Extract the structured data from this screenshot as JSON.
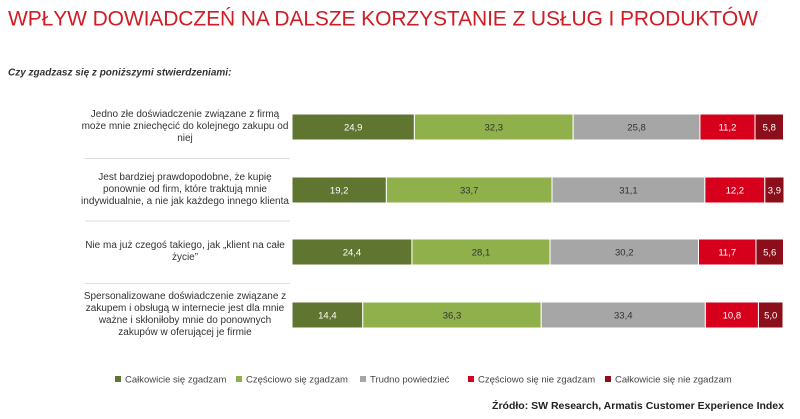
{
  "chart_data": {
    "type": "stacked-bar-horizontal",
    "title": "WPŁYW DOWIADCZEŃ NA DALSZE KORZYSTANIE Z USŁUG I PRODUKTÓW",
    "subtitle": "Czy zgadzasz się z poniższymi stwierdzeniami:",
    "source": "Źródło: SW Research, Armatis Customer Experience Index",
    "categories": [
      "Jedno złe doświadczenie związane z firmą może mnie zniechęcić do kolejnego zakupu od niej",
      "Jest bardziej prawdopodobne, że kupię ponownie od firm, które traktują mnie indywidualnie, a nie jak każdego innego klienta",
      "Nie ma już czegoś takiego, jak „klient na całe życie”",
      "Spersonalizowane doświadczenie związane z zakupem i obsługą w internecie jest dla mnie ważne i skłoniłoby mnie do ponownych zakupów w oferującej je firmie"
    ],
    "series": [
      {
        "name": "Całkowicie się zgadzam",
        "color": "#5f7530",
        "values": [
          24.9,
          19.2,
          24.4,
          14.4
        ],
        "value_labels": [
          "24,9",
          "19,2",
          "24,4",
          "14,4"
        ]
      },
      {
        "name": "Częściowo się zgadzam",
        "color": "#8fb04a",
        "values": [
          32.3,
          33.7,
          28.1,
          36.3
        ],
        "value_labels": [
          "32,3",
          "33,7",
          "28,1",
          "36,3"
        ]
      },
      {
        "name": "Trudno powiedzieć",
        "color": "#a6a6a6",
        "values": [
          25.8,
          31.1,
          30.2,
          33.4
        ],
        "value_labels": [
          "25,8",
          "31,1",
          "30,2",
          "33,4"
        ]
      },
      {
        "name": "Częściowo się nie zgadzam",
        "color": "#d6001c",
        "values": [
          11.2,
          12.2,
          11.7,
          10.8
        ],
        "value_labels": [
          "11,2",
          "12,2",
          "11,7",
          "10,8"
        ]
      },
      {
        "name": "Całkowicie się nie zgadzam",
        "color": "#8b0e1a",
        "values": [
          5.8,
          3.9,
          5.6,
          5.0
        ],
        "value_labels": [
          "5,8",
          "3,9",
          "5,6",
          "5,0"
        ]
      }
    ]
  }
}
